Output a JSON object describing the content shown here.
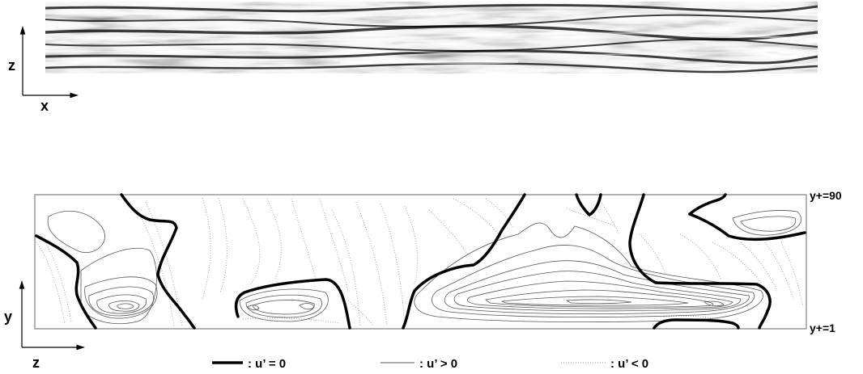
{
  "top_panel": {
    "axis_vertical_label": "z",
    "axis_horizontal_label": "x"
  },
  "bottom_panel": {
    "axis_vertical_label": "y",
    "axis_horizontal_label": "z",
    "level_top_label": "y+=90",
    "level_bottom_label": "y+=1"
  },
  "legend": {
    "items": [
      {
        "style": "thick",
        "label": ": u’ = 0"
      },
      {
        "style": "thin",
        "label": ": u’ > 0"
      },
      {
        "style": "dotted",
        "label": ": u’ < 0"
      }
    ]
  },
  "colors": {
    "thick_line": "#000000",
    "thin_line": "#555555",
    "dotted_line": "#9a9a9a",
    "frame": "#666666"
  }
}
